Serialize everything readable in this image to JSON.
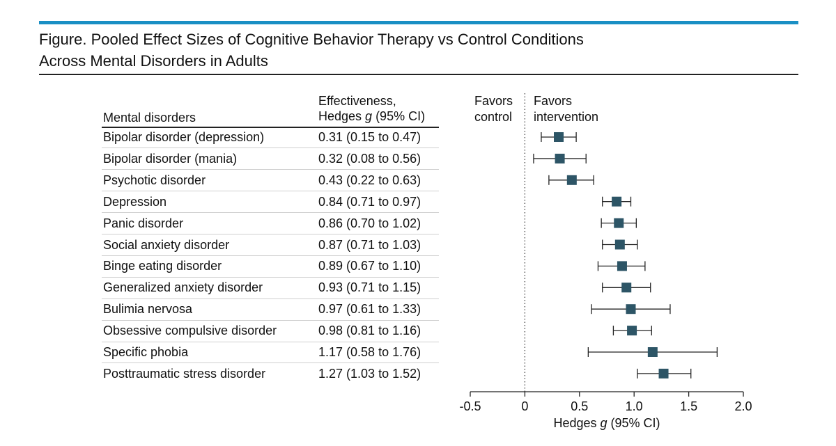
{
  "figure": {
    "title_line1": "Figure. Pooled Effect Sizes of Cognitive Behavior Therapy vs Control Conditions",
    "title_line2": "Across Mental Disorders in Adults",
    "accent_color": "#1a8fc4",
    "marker_color": "#2d5566"
  },
  "table": {
    "col1_header": "Mental disorders",
    "col2_header_line1": "Effectiveness,",
    "col2_header_line2_pre": "Hedges ",
    "col2_header_line2_italic": "g",
    "col2_header_line2_post": " (95% CI)"
  },
  "forest": {
    "favors_control_line1": "Favors",
    "favors_control_line2": "control",
    "favors_intervention_line1": "Favors",
    "favors_intervention_line2": "intervention",
    "xlabel_pre": "Hedges ",
    "xlabel_italic": "g",
    "xlabel_post": " (95% CI)"
  },
  "chart_data": {
    "type": "forest",
    "title": "Pooled Effect Sizes of Cognitive Behavior Therapy vs Control Conditions Across Mental Disorders in Adults",
    "xlabel": "Hedges g (95% CI)",
    "xlim": [
      -0.5,
      2.0
    ],
    "ticks": [
      -0.5,
      0,
      0.5,
      1.0,
      1.5,
      2.0
    ],
    "tick_labels": [
      "-0.5",
      "0",
      "0.5",
      "1.0",
      "1.5",
      "2.0"
    ],
    "reference_line": 0,
    "rows": [
      {
        "label": "Bipolar disorder (depression)",
        "text": "0.31 (0.15 to 0.47)",
        "g": 0.31,
        "lo": 0.15,
        "hi": 0.47
      },
      {
        "label": "Bipolar disorder (mania)",
        "text": "0.32 (0.08 to 0.56)",
        "g": 0.32,
        "lo": 0.08,
        "hi": 0.56
      },
      {
        "label": "Psychotic disorder",
        "text": "0.43 (0.22 to 0.63)",
        "g": 0.43,
        "lo": 0.22,
        "hi": 0.63
      },
      {
        "label": "Depression",
        "text": "0.84 (0.71 to 0.97)",
        "g": 0.84,
        "lo": 0.71,
        "hi": 0.97
      },
      {
        "label": "Panic disorder",
        "text": "0.86 (0.70 to 1.02)",
        "g": 0.86,
        "lo": 0.7,
        "hi": 1.02
      },
      {
        "label": "Social anxiety disorder",
        "text": "0.87 (0.71 to 1.03)",
        "g": 0.87,
        "lo": 0.71,
        "hi": 1.03
      },
      {
        "label": "Binge eating disorder",
        "text": "0.89 (0.67 to 1.10)",
        "g": 0.89,
        "lo": 0.67,
        "hi": 1.1
      },
      {
        "label": "Generalized anxiety disorder",
        "text": "0.93 (0.71 to 1.15)",
        "g": 0.93,
        "lo": 0.71,
        "hi": 1.15
      },
      {
        "label": "Bulimia nervosa",
        "text": "0.97 (0.61 to 1.33)",
        "g": 0.97,
        "lo": 0.61,
        "hi": 1.33
      },
      {
        "label": "Obsessive compulsive disorder",
        "text": "0.98 (0.81 to 1.16)",
        "g": 0.98,
        "lo": 0.81,
        "hi": 1.16
      },
      {
        "label": "Specific phobia",
        "text": "1.17 (0.58 to 1.76)",
        "g": 1.17,
        "lo": 0.58,
        "hi": 1.76
      },
      {
        "label": "Posttraumatic stress disorder",
        "text": "1.27 (1.03 to 1.52)",
        "g": 1.27,
        "lo": 1.03,
        "hi": 1.52
      }
    ]
  }
}
